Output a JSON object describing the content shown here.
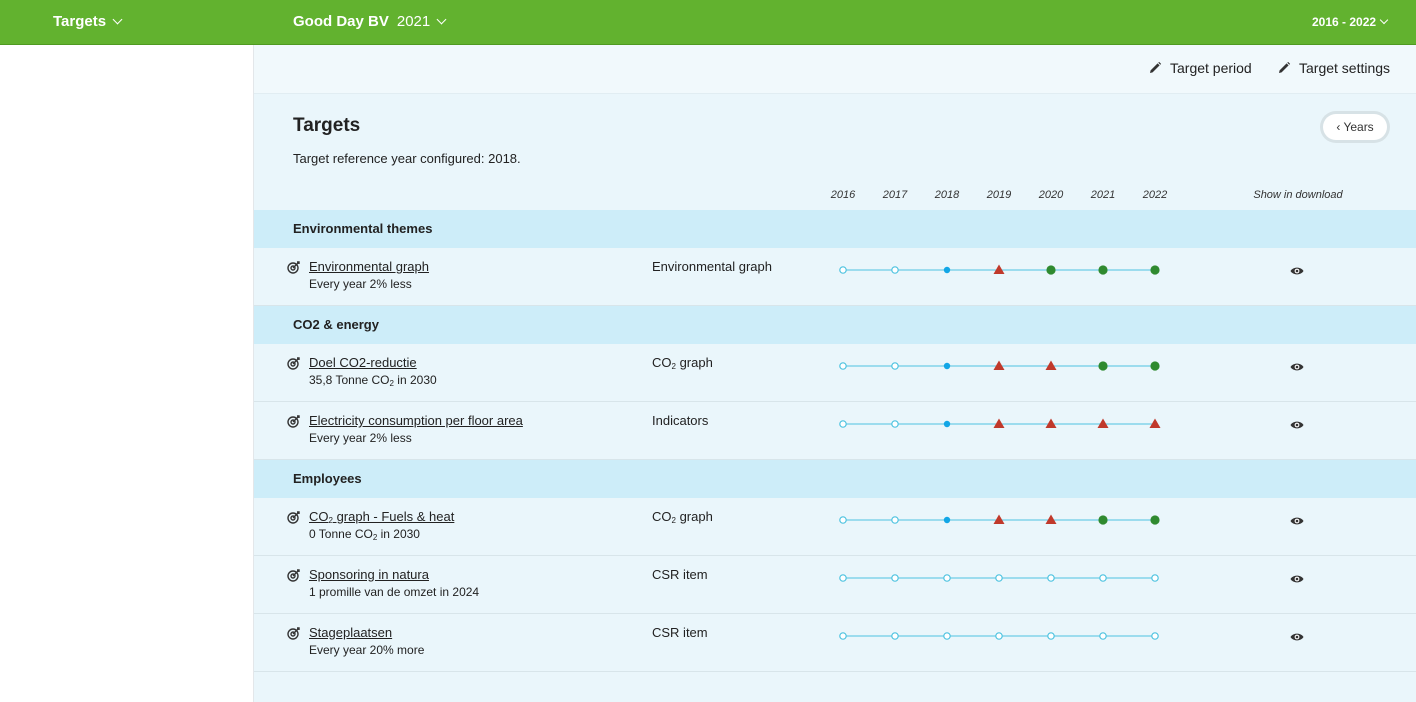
{
  "topbar": {
    "section_label": "Targets",
    "company": "Good Day BV",
    "year": "2021",
    "period": "2016 - 2022"
  },
  "toolbar": {
    "target_period": "Target period",
    "target_settings": "Target settings"
  },
  "page": {
    "title": "Targets",
    "subtitle": "Target reference year configured: 2018.",
    "years_toggle": "Years"
  },
  "columns": {
    "years": [
      "2016",
      "2017",
      "2018",
      "2019",
      "2020",
      "2021",
      "2022"
    ],
    "download": "Show in download"
  },
  "colors": {
    "brand_green": "#62b22f",
    "status_open": "#4ec3e0",
    "status_reference": "#12a6e6",
    "status_off_track": "#c0392b",
    "status_achieved": "#2f8a2f"
  },
  "sections": [
    {
      "title": "Environmental themes",
      "rows": [
        {
          "name": "Environmental graph",
          "desc": "Every year 2% less",
          "source": "Environmental graph",
          "status": [
            "open",
            "open",
            "reference",
            "off-track",
            "achieved",
            "achieved",
            "achieved"
          ]
        }
      ]
    },
    {
      "title": "CO2 & energy",
      "rows": [
        {
          "name": "Doel CO2-reductie",
          "desc_pre": "35,8 Tonne CO",
          "desc_sub": "2",
          "desc_post": " in 2030",
          "source_pre": "CO",
          "source_sub": "2",
          "source_post": " graph",
          "status": [
            "open",
            "open",
            "reference",
            "off-track",
            "off-track",
            "achieved",
            "achieved"
          ]
        },
        {
          "name": "Electricity consumption per floor area",
          "desc": "Every year 2% less",
          "source": "Indicators",
          "status": [
            "open",
            "open",
            "reference",
            "off-track",
            "off-track",
            "off-track",
            "off-track"
          ]
        }
      ]
    },
    {
      "title": "Employees",
      "rows": [
        {
          "name_pre": "CO",
          "name_sub": "2",
          "name_post": " graph - Fuels & heat",
          "desc_pre": "0 Tonne CO",
          "desc_sub": "2",
          "desc_post": " in 2030",
          "source_pre": "CO",
          "source_sub": "2",
          "source_post": " graph",
          "status": [
            "open",
            "open",
            "reference",
            "off-track",
            "off-track",
            "achieved",
            "achieved"
          ]
        },
        {
          "name": "Sponsoring in natura",
          "desc": "1 promille van de omzet in 2024",
          "source": "CSR item",
          "status": [
            "open",
            "open",
            "open",
            "open",
            "open",
            "open",
            "open"
          ]
        },
        {
          "name": "Stageplaatsen",
          "desc": "Every year 20% more",
          "source": "CSR item",
          "status": [
            "open",
            "open",
            "open",
            "open",
            "open",
            "open",
            "open"
          ]
        }
      ]
    }
  ]
}
